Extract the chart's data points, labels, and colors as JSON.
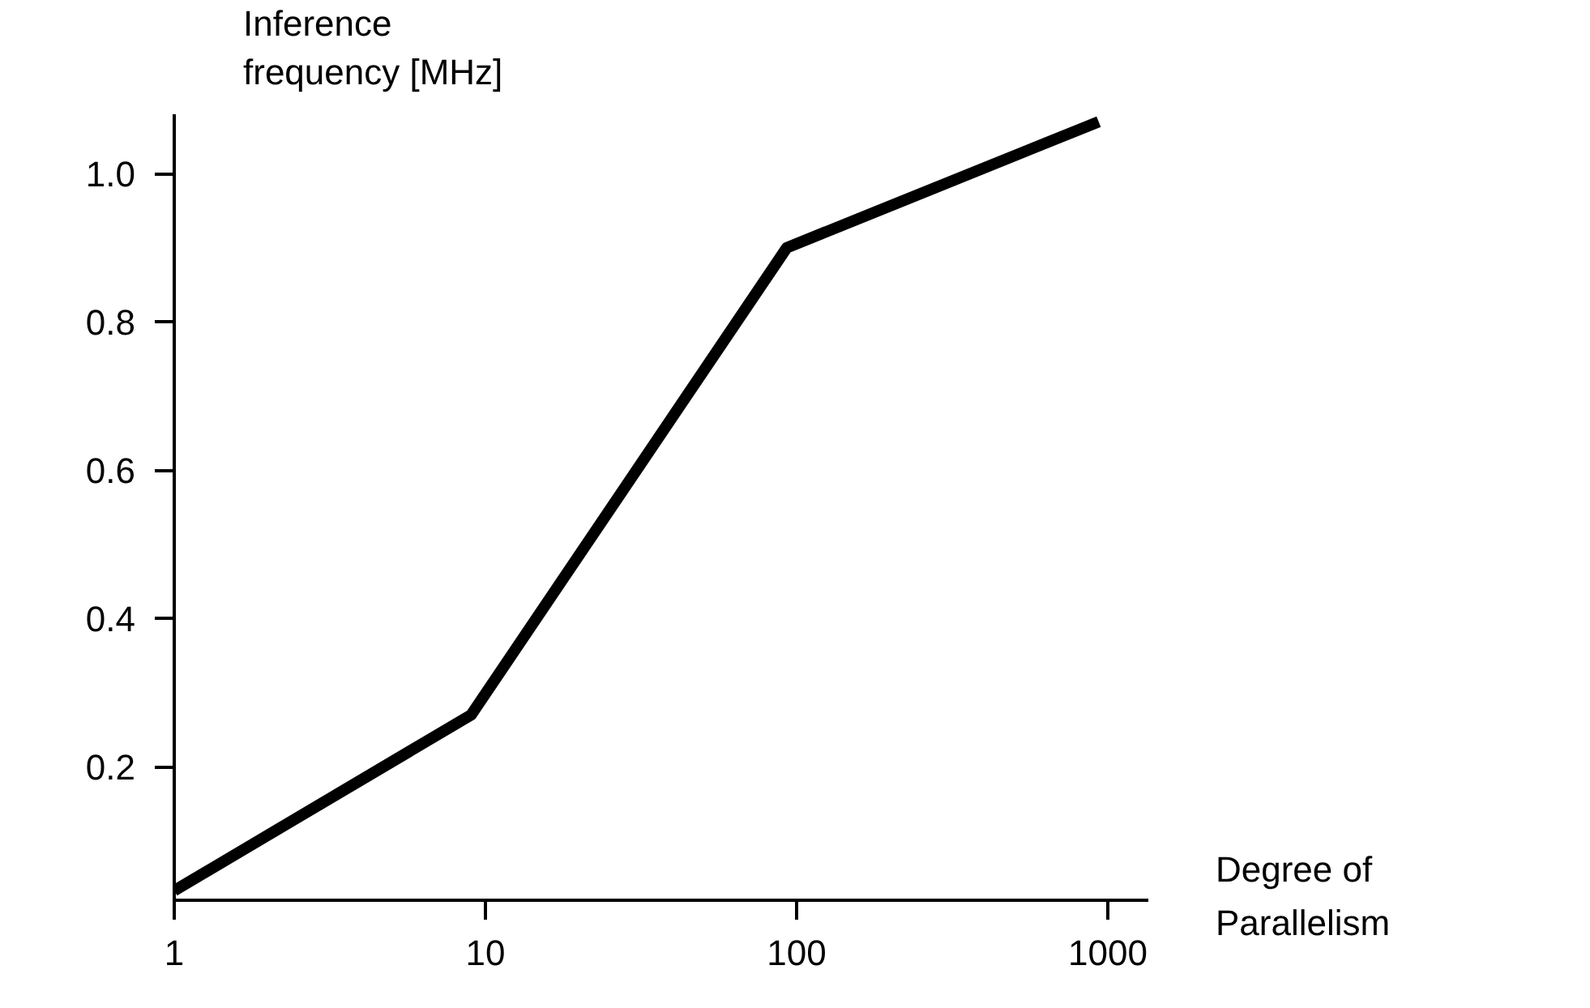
{
  "chart_data": {
    "type": "line",
    "xlabel": "Degree of\nParallelism",
    "ylabel": "Inference\nfrequency [MHz]",
    "x": [
      1,
      9,
      93,
      935
    ],
    "series": [
      {
        "color": "#000000",
        "values": [
          0.033,
          0.27,
          0.9,
          1.07
        ]
      }
    ],
    "log": "x",
    "xlim": [
      1,
      1350
    ],
    "ylim": [
      0.02,
      1.08
    ],
    "xticks": [
      1,
      10,
      100,
      1000
    ],
    "yticks": [
      {
        "value": 0.2,
        "label": "0.2"
      },
      {
        "value": 0.4,
        "label": "0.4"
      },
      {
        "value": 0.6,
        "label": "0.6"
      },
      {
        "value": 0.8,
        "label": "0.8"
      },
      {
        "value": 1.0,
        "label": "1.0"
      }
    ],
    "grid": false,
    "marker": "none",
    "line_style": "solid"
  }
}
